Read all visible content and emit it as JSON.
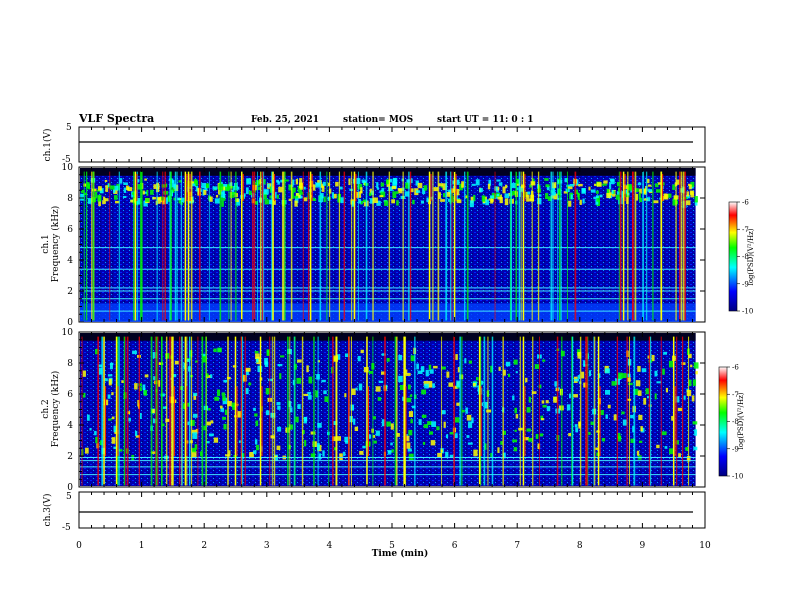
{
  "header": {
    "title": "VLF Spectra",
    "date": "Feb. 25, 2021",
    "station": "station= MOS",
    "start": "start  UT =   11: 0  : 1"
  },
  "chart_data": [
    {
      "type": "line",
      "title": "",
      "ylabel": "ch.1(V)",
      "ylim": [
        -5,
        5
      ],
      "yticks": [
        "5",
        "-5"
      ],
      "series": [
        {
          "values": [
            0,
            0
          ]
        }
      ],
      "x": [
        0,
        9.85
      ]
    },
    {
      "type": "heatmap",
      "ylabel": "ch.1\nFrequency (kHz)",
      "ylabel_line1": "ch.1",
      "ylabel_line2": "Frequency (kHz)",
      "ylim": [
        0,
        10
      ],
      "yticks": [
        "0",
        "2",
        "4",
        "6",
        "8",
        "10"
      ],
      "xlim": [
        0,
        10
      ],
      "data_end_min": 9.85,
      "colorbar": {
        "label": "log(PSD)(V²/Hz)",
        "range": [
          -10,
          -6
        ],
        "ticks": [
          "-6",
          "-7",
          "-8",
          "-9",
          "-10"
        ]
      },
      "features": {
        "emission_band_khz": [
          7.8,
          9.3
        ],
        "lower_band_khz": [
          0,
          1.2
        ],
        "horizontal_lines_khz": [
          0.7,
          1.5,
          2.0,
          2.2,
          3.4,
          4.8
        ],
        "sferics_min": [
          0.9,
          1.7,
          1.75,
          2.6,
          3.1,
          3.7,
          4.4,
          5.6,
          6.0,
          7.1,
          8.7,
          9.3
        ]
      }
    },
    {
      "type": "heatmap",
      "ylabel": "ch.2\nFrequency (kHz)",
      "ylabel_line1": "ch.2",
      "ylabel_line2": "Frequency (kHz)",
      "ylim": [
        0,
        10
      ],
      "yticks": [
        "0",
        "2",
        "4",
        "6",
        "8",
        "10"
      ],
      "xlim": [
        0,
        10
      ],
      "data_end_min": 9.85,
      "colorbar": {
        "label": "log(PSD)(V²/Hz)",
        "range": [
          -10,
          -6
        ],
        "ticks": [
          "-6",
          "-7",
          "-8",
          "-9",
          "-10"
        ]
      },
      "features": {
        "emission_band_khz": [
          2.0,
          9.0
        ],
        "horizontal_lines_khz": [
          0.8,
          1.3,
          1.7,
          1.9
        ],
        "sferics_min": [
          0.4,
          0.6,
          1.5,
          1.7,
          2.5,
          2.9,
          4.6,
          5.2,
          6.4,
          7.1,
          8.3,
          9.5
        ]
      }
    },
    {
      "type": "line",
      "title": "",
      "ylabel": "ch.3(V)",
      "ylim": [
        -5,
        5
      ],
      "yticks": [
        "5",
        "-5"
      ],
      "series": [
        {
          "values": [
            0,
            0
          ]
        }
      ],
      "x": [
        0,
        9.85
      ]
    }
  ],
  "xaxis": {
    "label": "Time  (min)",
    "ticks": [
      "0",
      "1",
      "2",
      "3",
      "4",
      "5",
      "6",
      "7",
      "8",
      "9",
      "10"
    ]
  },
  "colors": {
    "background": "#000030",
    "colormap": [
      "#000080",
      "#0000ff",
      "#00ffff",
      "#00ff00",
      "#ffff00",
      "#ff0000",
      "#ffffff"
    ]
  }
}
